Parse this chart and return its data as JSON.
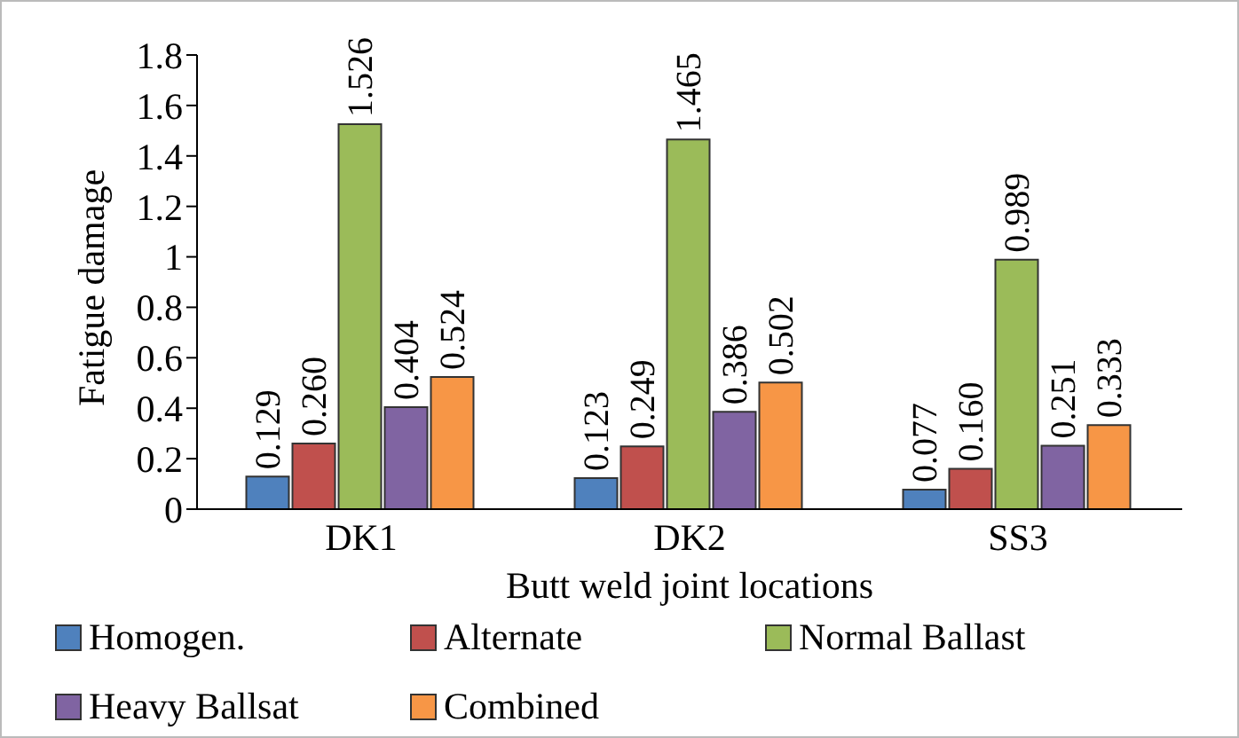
{
  "chart_data": {
    "type": "bar",
    "xlabel": "Butt weld joint locations",
    "ylabel": "Fatigue damage",
    "categories": [
      "DK1",
      "DK2",
      "SS3"
    ],
    "series": [
      {
        "name": "Homogen.",
        "color": "#4f81bd",
        "values": [
          0.129,
          0.123,
          0.077
        ],
        "value_labels": [
          "0.129",
          "0.123",
          "0.077"
        ]
      },
      {
        "name": "Alternate",
        "color": "#c0504d",
        "values": [
          0.26,
          0.249,
          0.16
        ],
        "value_labels": [
          "0.260",
          "0.249",
          "0.160"
        ]
      },
      {
        "name": "Normal Ballast",
        "color": "#9bbb59",
        "values": [
          1.526,
          1.465,
          0.989
        ],
        "value_labels": [
          "1.526",
          "1.465",
          "0.989"
        ]
      },
      {
        "name": "Heavy Ballsat",
        "color": "#8064a2",
        "values": [
          0.404,
          0.386,
          0.251
        ],
        "value_labels": [
          "0.404",
          "0.386",
          "0.251"
        ]
      },
      {
        "name": "Combined",
        "color": "#f79646",
        "values": [
          0.524,
          0.502,
          0.333
        ],
        "value_labels": [
          "0.524",
          "0.502",
          "0.333"
        ]
      }
    ],
    "ylim": [
      0,
      1.8
    ],
    "yticks": [
      0,
      0.2,
      0.4,
      0.6,
      0.8,
      1,
      1.2,
      1.4,
      1.6,
      1.8
    ],
    "grid": false,
    "legend": "bottom"
  }
}
